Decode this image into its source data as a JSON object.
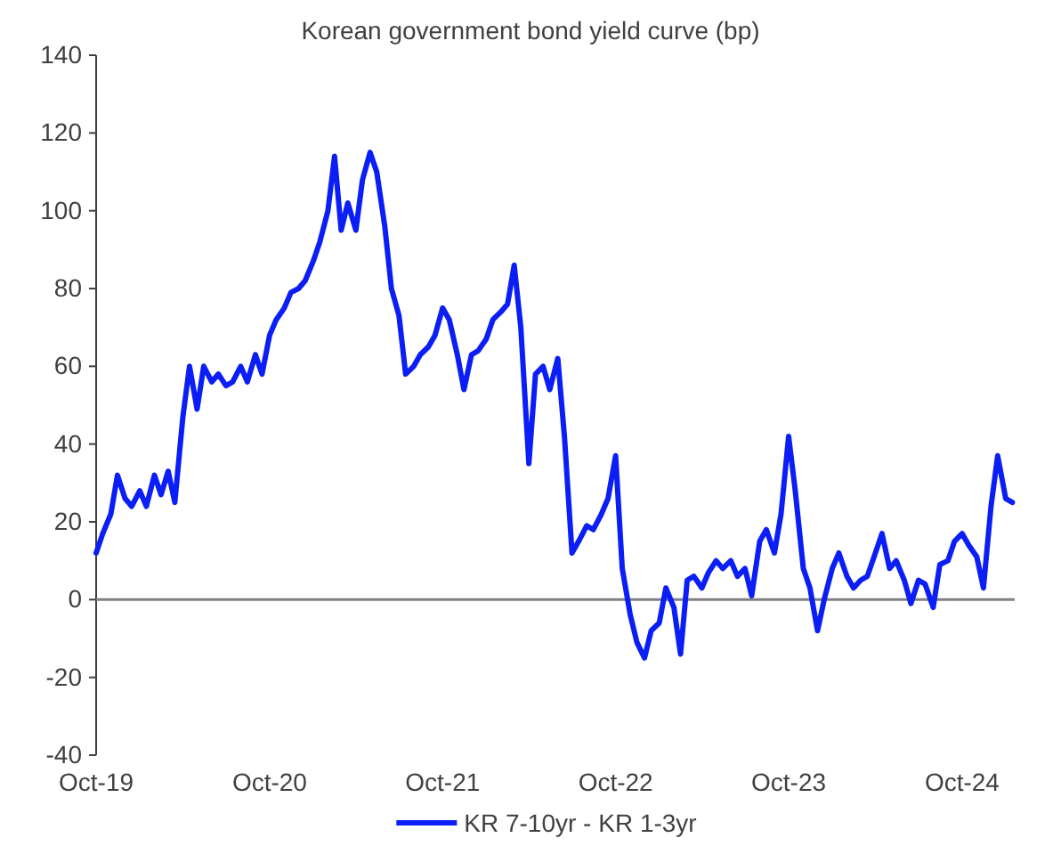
{
  "chart_data": {
    "type": "line",
    "title": "Korean government bond yield curve (bp)",
    "x": [
      "2019-10-01",
      "2019-10-15",
      "2019-11-01",
      "2019-11-15",
      "2019-12-01",
      "2019-12-15",
      "2020-01-01",
      "2020-01-15",
      "2020-02-01",
      "2020-02-15",
      "2020-03-01",
      "2020-03-15",
      "2020-04-01",
      "2020-04-15",
      "2020-05-01",
      "2020-05-15",
      "2020-06-01",
      "2020-06-15",
      "2020-07-01",
      "2020-07-15",
      "2020-08-01",
      "2020-08-15",
      "2020-09-01",
      "2020-09-15",
      "2020-10-01",
      "2020-10-15",
      "2020-11-01",
      "2020-11-15",
      "2020-12-01",
      "2020-12-15",
      "2021-01-01",
      "2021-01-15",
      "2021-02-01",
      "2021-02-15",
      "2021-03-01",
      "2021-03-15",
      "2021-04-01",
      "2021-04-15",
      "2021-05-01",
      "2021-05-15",
      "2021-06-01",
      "2021-06-15",
      "2021-07-01",
      "2021-07-15",
      "2021-08-01",
      "2021-08-15",
      "2021-09-01",
      "2021-09-15",
      "2021-10-01",
      "2021-10-15",
      "2021-11-01",
      "2021-11-15",
      "2021-12-01",
      "2021-12-15",
      "2022-01-01",
      "2022-01-15",
      "2022-02-01",
      "2022-02-15",
      "2022-03-01",
      "2022-03-15",
      "2022-04-01",
      "2022-04-15",
      "2022-05-01",
      "2022-05-15",
      "2022-06-01",
      "2022-06-15",
      "2022-07-01",
      "2022-07-15",
      "2022-08-01",
      "2022-08-15",
      "2022-09-01",
      "2022-09-15",
      "2022-10-01",
      "2022-10-15",
      "2022-11-01",
      "2022-11-15",
      "2022-12-01",
      "2022-12-15",
      "2023-01-01",
      "2023-01-15",
      "2023-02-01",
      "2023-02-15",
      "2023-03-01",
      "2023-03-15",
      "2023-04-01",
      "2023-04-15",
      "2023-05-01",
      "2023-05-15",
      "2023-06-01",
      "2023-06-15",
      "2023-07-01",
      "2023-07-15",
      "2023-08-01",
      "2023-08-15",
      "2023-09-01",
      "2023-09-15",
      "2023-10-01",
      "2023-10-15",
      "2023-11-01",
      "2023-11-15",
      "2023-12-01",
      "2023-12-15",
      "2024-01-01",
      "2024-01-15",
      "2024-02-01",
      "2024-02-15",
      "2024-03-01",
      "2024-03-15",
      "2024-04-01",
      "2024-04-15",
      "2024-05-01",
      "2024-05-15",
      "2024-06-01",
      "2024-06-15",
      "2024-07-01",
      "2024-07-15",
      "2024-08-01",
      "2024-08-15",
      "2024-09-01",
      "2024-09-15",
      "2024-10-01",
      "2024-10-15",
      "2024-11-01",
      "2024-11-15",
      "2024-12-01",
      "2024-12-15",
      "2025-01-01",
      "2025-01-15"
    ],
    "series": [
      {
        "name": "KR 7-10yr - KR 1-3yr",
        "color": "#0a1ef5",
        "values": [
          12,
          17,
          22,
          32,
          26,
          24,
          28,
          24,
          32,
          27,
          33,
          25,
          47,
          60,
          49,
          60,
          56,
          58,
          55,
          56,
          60,
          56,
          63,
          58,
          68,
          72,
          75,
          79,
          80,
          82,
          87,
          92,
          100,
          114,
          95,
          102,
          95,
          108,
          115,
          110,
          96,
          80,
          73,
          58,
          60,
          63,
          65,
          68,
          75,
          72,
          63,
          54,
          63,
          64,
          67,
          72,
          74,
          76,
          86,
          70,
          35,
          58,
          60,
          54,
          62,
          42,
          12,
          15,
          19,
          18,
          22,
          26,
          37,
          8,
          -4,
          -11,
          -15,
          -8,
          -6,
          3,
          -2,
          -14,
          5,
          6,
          3,
          7,
          10,
          8,
          10,
          6,
          8,
          1,
          15,
          18,
          12,
          22,
          42,
          28,
          8,
          3,
          -8,
          0,
          8,
          12,
          6,
          3,
          5,
          6,
          12,
          17,
          8,
          10,
          5,
          -1,
          5,
          4,
          -2,
          9,
          10,
          15,
          17,
          14,
          11,
          3,
          24,
          37,
          26,
          25
        ]
      }
    ],
    "xlim": [
      "2019-10-01",
      "2025-01-20"
    ],
    "xticks": [
      {
        "value": "2019-10-01",
        "label": "Oct-19"
      },
      {
        "value": "2020-10-01",
        "label": "Oct-20"
      },
      {
        "value": "2021-10-01",
        "label": "Oct-21"
      },
      {
        "value": "2022-10-01",
        "label": "Oct-22"
      },
      {
        "value": "2023-10-01",
        "label": "Oct-23"
      },
      {
        "value": "2024-10-01",
        "label": "Oct-24"
      }
    ],
    "ylim": [
      -40,
      140
    ],
    "yticks": [
      -40,
      -20,
      0,
      20,
      40,
      60,
      80,
      100,
      120,
      140
    ],
    "ref_lines": [
      {
        "axis": "y",
        "value": 0,
        "color": "#808080"
      }
    ],
    "legend": "bottom",
    "grid": false,
    "line_style": "solid",
    "marker": "none"
  }
}
